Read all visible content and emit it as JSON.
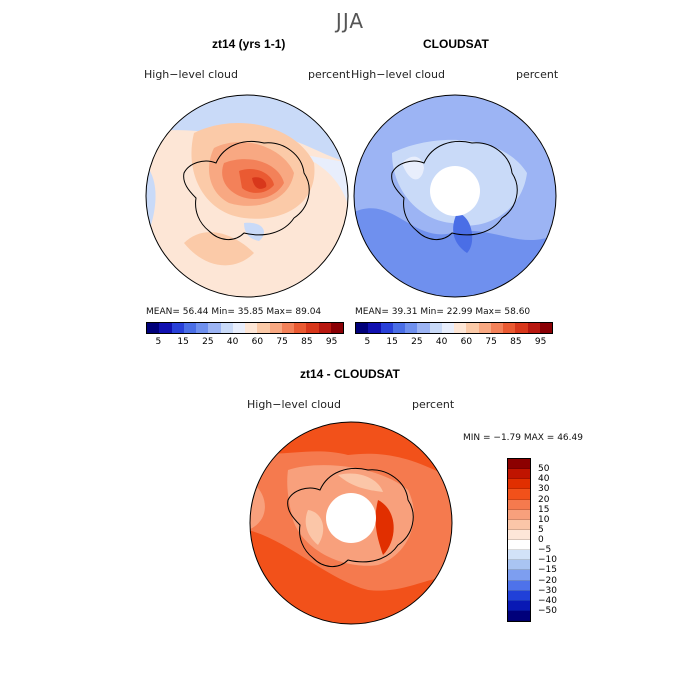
{
  "season": "JJA",
  "top_left": {
    "title": "zt14 (yrs 1-1)",
    "subtitle": "High−level cloud",
    "units": "percent",
    "stats": "MEAN=  56.44   Min=  35.85   Max=  89.04"
  },
  "top_right": {
    "title": "CLOUDSAT",
    "subtitle": "High−level cloud",
    "units": "percent",
    "stats": "MEAN=  39.31   Min=  22.99   Max=  58.60"
  },
  "abs_colorbar": {
    "colors": [
      "#00007a",
      "#1010b0",
      "#2840d8",
      "#4a6ee6",
      "#6f90ee",
      "#9cb4f4",
      "#c9daf8",
      "#e8eefc",
      "#fde6d6",
      "#fbcaa8",
      "#f8a882",
      "#f38159",
      "#ea5a32",
      "#d8371b",
      "#b81810",
      "#8a0005"
    ],
    "tick_labels": [
      "5",
      "15",
      "25",
      "40",
      "60",
      "75",
      "85",
      "95"
    ]
  },
  "bottom": {
    "title": "zt14 - CLOUDSAT",
    "subtitle": "High−level cloud",
    "units": "percent",
    "minmax": "MIN =   −1.79  MAX =   46.49"
  },
  "diff_colorbar": {
    "levels": [
      "50",
      "40",
      "30",
      "20",
      "15",
      "10",
      "5",
      "0",
      "−5",
      "−10",
      "−15",
      "−20",
      "−30",
      "−40",
      "−50"
    ],
    "colors": [
      "#8c0000",
      "#c01400",
      "#e12f00",
      "#f2511a",
      "#f57a4e",
      "#f8a07c",
      "#fbc6a8",
      "#fde6d8",
      "#ffffff",
      "#d2e2f8",
      "#a9c4f2",
      "#7d9ef0",
      "#4e72ea",
      "#2040d8",
      "#0818b4",
      "#00007a"
    ]
  }
}
